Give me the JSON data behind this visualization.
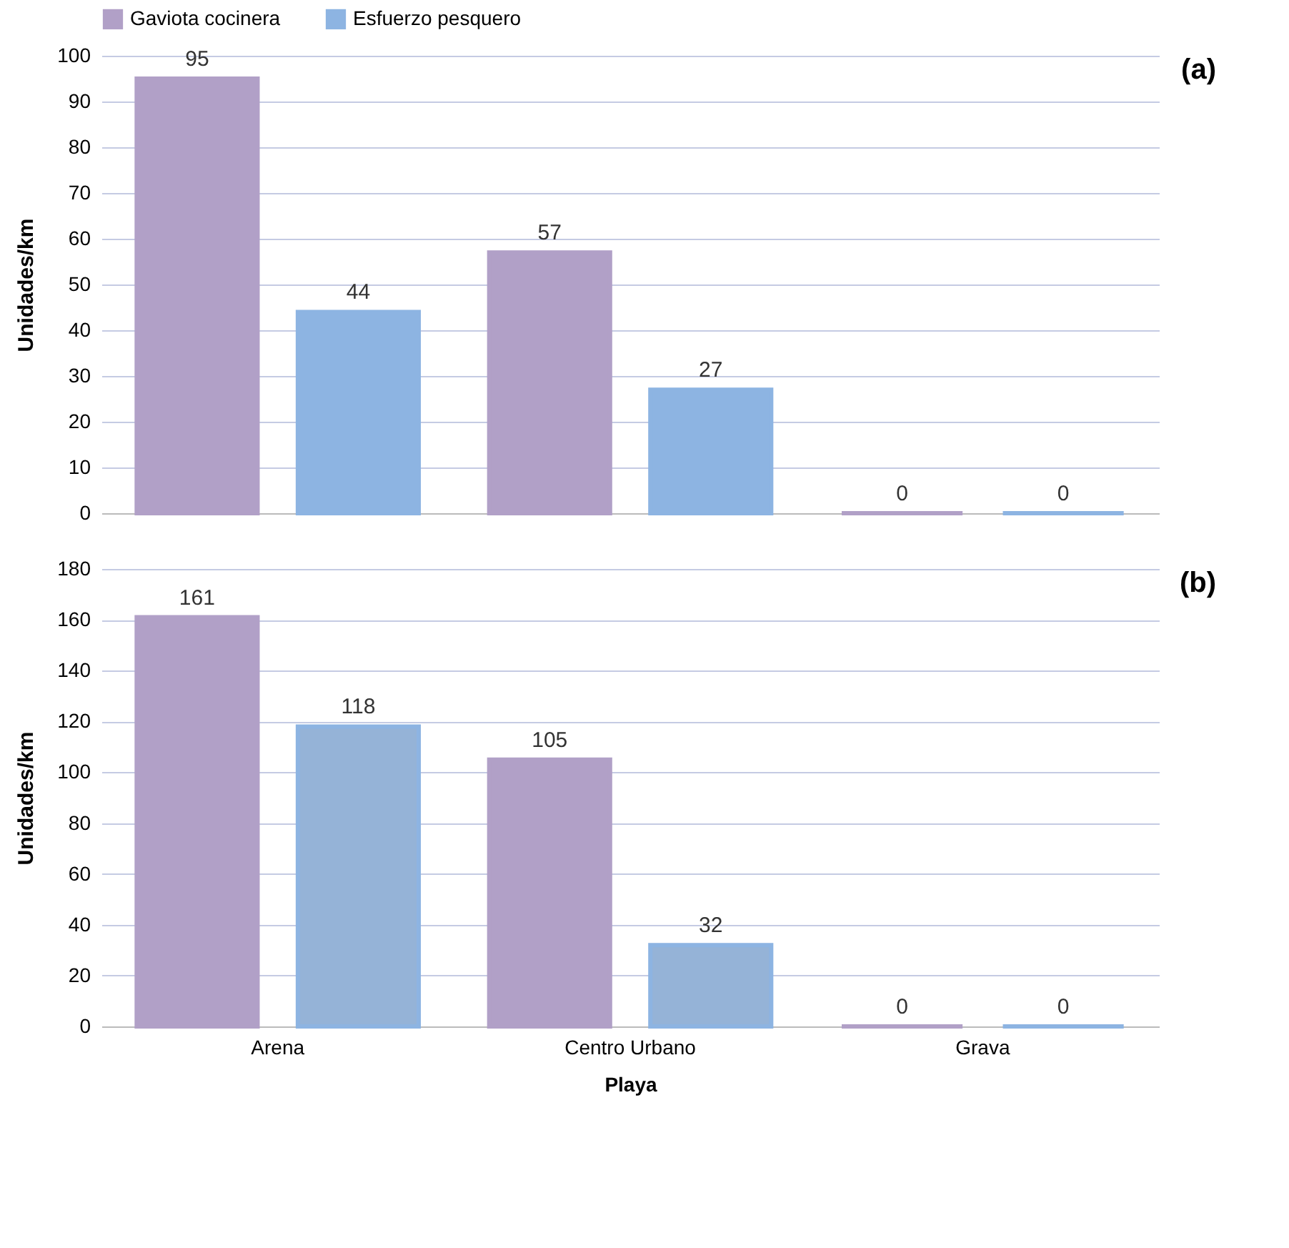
{
  "chart_data": [
    {
      "type": "bar",
      "categories": [
        null,
        null,
        null
      ],
      "ylabel": "Unidades/km",
      "ylim": [
        0,
        100
      ],
      "yticks": [
        0,
        10,
        20,
        30,
        40,
        50,
        60,
        70,
        80,
        90,
        100
      ],
      "grid": "y",
      "legend": "top",
      "data_labels": true,
      "annotations": [
        "(a)"
      ],
      "series": [
        {
          "name": "Gaviota cocinera",
          "color": "#b1a0c7",
          "values": [
            95,
            57,
            0
          ]
        },
        {
          "name": "Esfuerzo pesquero",
          "color": "#8db4e2",
          "values": [
            44,
            27,
            0
          ]
        }
      ]
    },
    {
      "type": "bar",
      "categories": [
        "Arena",
        "Centro Urbano",
        "Grava"
      ],
      "xlabel": "Playa",
      "ylabel": "Unidades/km",
      "ylim": [
        0,
        180
      ],
      "yticks": [
        0,
        20,
        40,
        60,
        80,
        100,
        120,
        140,
        160,
        180
      ],
      "grid": "y",
      "legend": false,
      "data_labels": true,
      "annotations": [
        "(b)"
      ],
      "series": [
        {
          "color": "#b1a0c7",
          "values": [
            161,
            105,
            0
          ]
        },
        {
          "color": "#95b3d7",
          "values": [
            118,
            32,
            0
          ]
        }
      ]
    }
  ]
}
